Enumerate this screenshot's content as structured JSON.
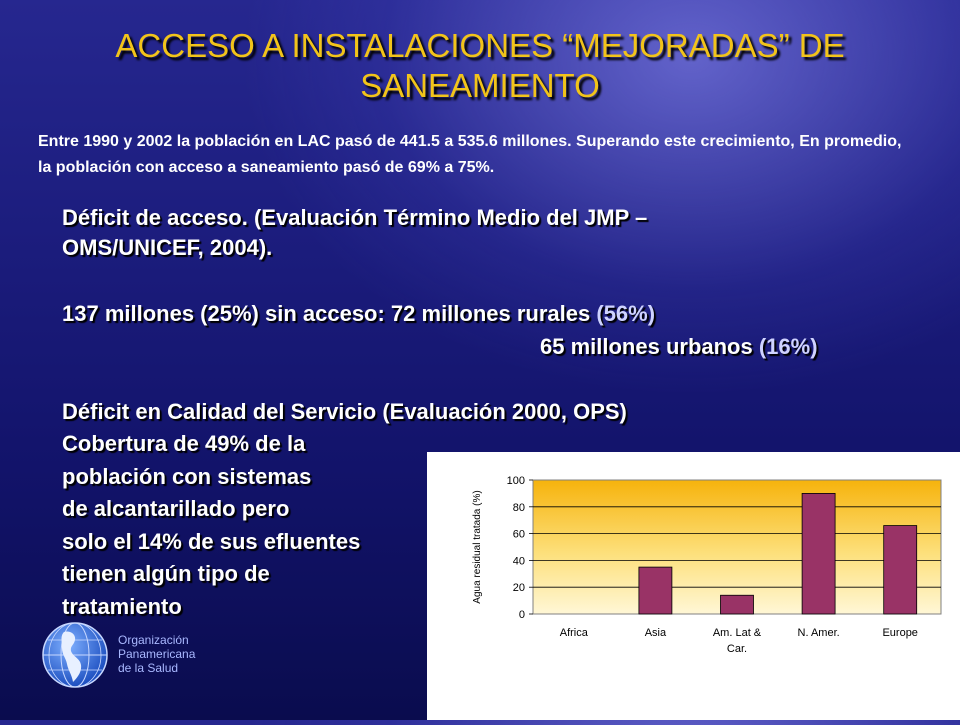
{
  "slide": {
    "title": "ACCESO A INSTALACIONES “MEJORADAS” DE SANEAMIENTO",
    "intro": "Entre 1990 y 2002 la población en LAC pasó de  441.5 a 535.6 millones. Superando este crecimiento, En promedio, la población con acceso a saneamiento pasó de 69% a 75%.",
    "deficit_access": {
      "heading": "Déficit de acceso. (Evaluación Término Medio del JMP – OMS/UNICEF, 2004).",
      "line_rural": "137 millones (25%) sin acceso:  72 millones rurales",
      "rural_pct": "(56%)",
      "line_urban": "65 millones urbanos",
      "urban_pct": "(16%)"
    },
    "deficit_quality": {
      "heading": "Déficit en Calidad del Servicio (Evaluación 2000, OPS)",
      "lines": [
        "Cobertura de 49% de la",
        "población con sistemas",
        "de alcantarillado pero",
        "solo el 14% de sus efluentes",
        "tienen algún tipo de",
        "tratamiento"
      ]
    },
    "organization": {
      "lines": [
        "Organización",
        "Panamericana",
        "de la Salud"
      ]
    },
    "colors": {
      "title": "#f2c41a",
      "bar_fill": "#993366",
      "plot_top": "#f6b30c",
      "plot_bottom": "#fff7d6"
    }
  },
  "chart_data": {
    "type": "bar",
    "categories": [
      "Africa",
      "Asia",
      "Am. Lat & Car.",
      "N. Amer.",
      "Europe"
    ],
    "category_label_lines": [
      [
        "Africa"
      ],
      [
        "Asia"
      ],
      [
        "Am. Lat &",
        "Car."
      ],
      [
        "N. Amer."
      ],
      [
        "Europe"
      ]
    ],
    "values": [
      0,
      35,
      14,
      90,
      66
    ],
    "ylabel": "Agua residual tratada (%)",
    "xlabel": "",
    "ylim": [
      0,
      100
    ],
    "yticks": [
      0,
      20,
      40,
      60,
      80,
      100
    ],
    "grid": true
  }
}
